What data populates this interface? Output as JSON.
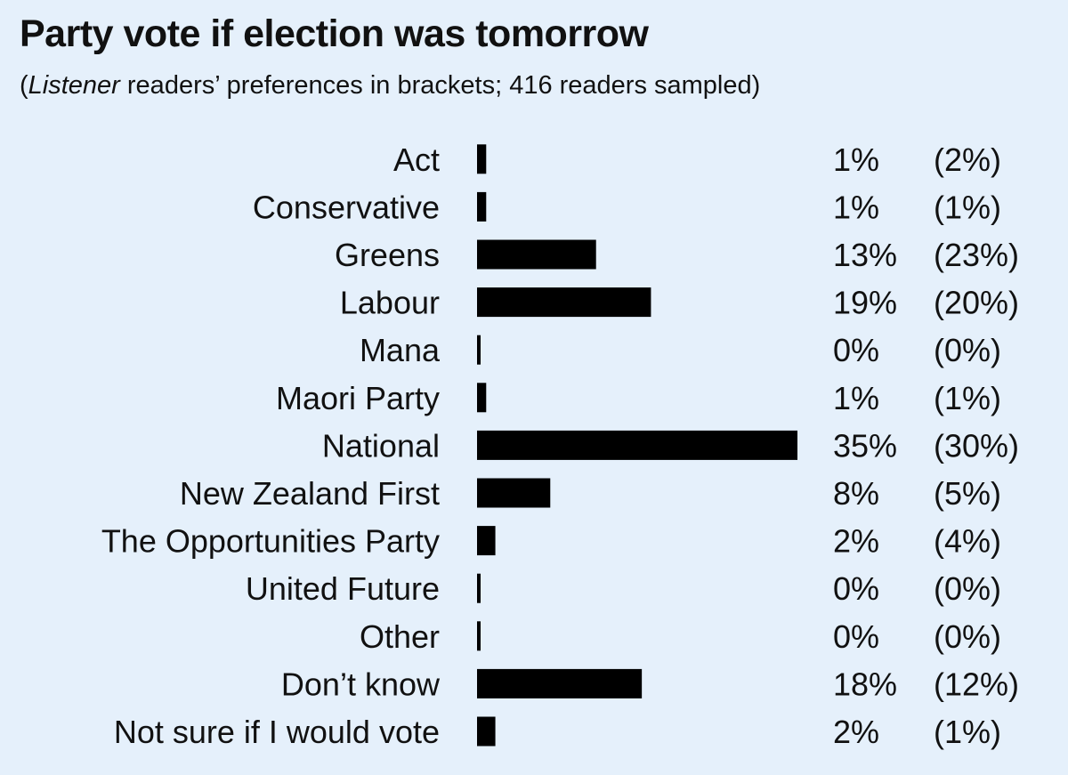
{
  "chart_data": {
    "type": "bar",
    "title": "Party vote if election was tomorrow",
    "subtitle_prefix": "(",
    "subtitle_italic": "Listener",
    "subtitle_rest": " readers’ preferences in brackets; 416 readers sampled)",
    "categories": [
      "Act",
      "Conservative",
      "Greens",
      "Labour",
      "Mana",
      "Maori Party",
      "National",
      "New Zealand First",
      "The Opportunities Party",
      "United Future",
      "Other",
      "Don’t know",
      "Not sure if I would vote"
    ],
    "series": [
      {
        "values": [
          1,
          1,
          13,
          19,
          0,
          1,
          35,
          8,
          2,
          0,
          0,
          18,
          2
        ]
      },
      {
        "values": [
          2,
          1,
          23,
          20,
          0,
          1,
          30,
          5,
          4,
          0,
          0,
          12,
          1
        ]
      }
    ],
    "value_labels": [
      "1%",
      "1%",
      "13%",
      "19%",
      "0%",
      "1%",
      "35%",
      "8%",
      "2%",
      "0%",
      "0%",
      "18%",
      "2%"
    ],
    "bracket_labels": [
      "(2%)",
      "(1%)",
      "(23%)",
      "(20%)",
      "(0%)",
      "(1%)",
      "(30%)",
      "(5%)",
      "(4%)",
      "(0%)",
      "(0%)",
      "(12%)",
      "(1%)"
    ],
    "orientation": "horizontal",
    "xlim": [
      0,
      35
    ],
    "grid": false,
    "legend": "none",
    "colors": {
      "bar": "#000000",
      "background": "#e5f0fb",
      "text": "#111111"
    }
  }
}
